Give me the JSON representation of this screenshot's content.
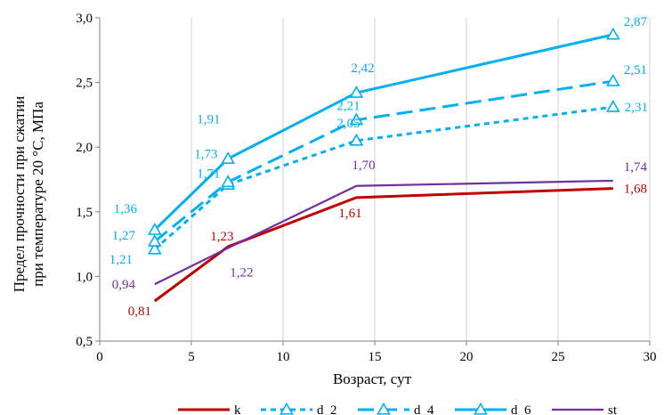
{
  "chart_data": {
    "type": "line",
    "title": "",
    "xlabel": "Возраст, сут",
    "ylabel_lines": [
      "Предел прочности при сжатии",
      "при температуре 20 °С, МПа"
    ],
    "xlim": [
      0,
      30
    ],
    "ylim": [
      0.5,
      3.0
    ],
    "x_ticks": [
      "0",
      "5",
      "10",
      "15",
      "20",
      "25",
      "30"
    ],
    "y_ticks": [
      "0,5",
      "1,0",
      "1,5",
      "2,0",
      "2,5",
      "3,0"
    ],
    "grid": "vertical",
    "legend_position": "bottom",
    "series": [
      {
        "name": "k",
        "color": "#c00000",
        "dash": "solid",
        "marker": "none",
        "x": [
          3,
          7,
          14,
          28
        ],
        "y": [
          0.81,
          1.23,
          1.61,
          1.68
        ],
        "labels": [
          "0,81",
          "1,23",
          "1,61",
          "1,68"
        ]
      },
      {
        "name": "d_2",
        "color": "#00b0f0",
        "dash": "short",
        "marker": "triangle",
        "x": [
          3,
          7,
          14,
          28
        ],
        "y": [
          1.21,
          1.71,
          2.05,
          2.31
        ],
        "labels": [
          "1,21",
          "1,71",
          "2,05",
          "2,31"
        ]
      },
      {
        "name": "d_4",
        "color": "#00b0f0",
        "dash": "long",
        "marker": "triangle",
        "x": [
          3,
          7,
          14,
          28
        ],
        "y": [
          1.27,
          1.73,
          2.21,
          2.51
        ],
        "labels": [
          "1,27",
          "1,73",
          "2,21",
          "2,51"
        ]
      },
      {
        "name": "d_6",
        "color": "#00b0f0",
        "dash": "solid",
        "marker": "triangle",
        "x": [
          3,
          7,
          14,
          28
        ],
        "y": [
          1.36,
          1.91,
          2.42,
          2.87
        ],
        "labels": [
          "1,36",
          "1,91",
          "2,42",
          "2,87"
        ]
      },
      {
        "name": "st",
        "color": "#7030a0",
        "dash": "solid",
        "marker": "none",
        "x": [
          3,
          7,
          14,
          28
        ],
        "y": [
          0.94,
          1.22,
          1.7,
          1.74
        ],
        "labels": [
          "0,94",
          "1,22",
          "1,70",
          "1,74"
        ]
      }
    ]
  }
}
